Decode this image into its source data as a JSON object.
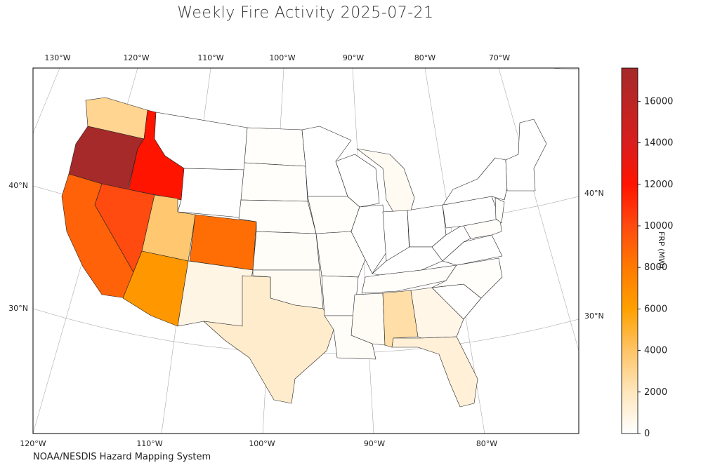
{
  "title": "Weekly Fire Activity 2025-07-21",
  "source": "NOAA/NESDIS Hazard Mapping System",
  "lon_ticks_top": [
    "130°W",
    "120°W",
    "110°W",
    "100°W",
    "90°W",
    "80°W",
    "70°W"
  ],
  "lon_ticks_bottom": [
    "120°W",
    "110°W",
    "100°W",
    "90°W",
    "80°W"
  ],
  "lat_ticks_left": [
    "40°N",
    "30°N"
  ],
  "lat_ticks_right": [
    "40°N",
    "30°N"
  ],
  "colorbar": {
    "label": "FRP (MW)",
    "ticks": [
      "0",
      "2000",
      "4000",
      "6000",
      "8000",
      "10000",
      "12000",
      "14000",
      "16000"
    ],
    "min": 0,
    "max": 17600,
    "stops": [
      {
        "v": 0,
        "color": "#ffffff"
      },
      {
        "v": 2000,
        "color": "#ffe6bc"
      },
      {
        "v": 4000,
        "color": "#ffc466"
      },
      {
        "v": 6000,
        "color": "#ffa000"
      },
      {
        "v": 8000,
        "color": "#ff7a00"
      },
      {
        "v": 10000,
        "color": "#ff4a10"
      },
      {
        "v": 12000,
        "color": "#ff1400"
      },
      {
        "v": 14000,
        "color": "#d81e1e"
      },
      {
        "v": 17600,
        "color": "#a52a2a"
      }
    ]
  },
  "states": [
    {
      "name": "Washington",
      "frp": 3000
    },
    {
      "name": "Oregon",
      "frp": 17500
    },
    {
      "name": "Idaho",
      "frp": 12000
    },
    {
      "name": "California",
      "frp": 9000
    },
    {
      "name": "Nevada",
      "frp": 10000
    },
    {
      "name": "Utah",
      "frp": 3800
    },
    {
      "name": "Arizona",
      "frp": 6500
    },
    {
      "name": "Colorado",
      "frp": 8500
    },
    {
      "name": "New Mexico",
      "frp": 800
    },
    {
      "name": "Texas",
      "frp": 1500
    },
    {
      "name": "Oklahoma",
      "frp": 400
    },
    {
      "name": "Kansas",
      "frp": 200
    },
    {
      "name": "Louisiana",
      "frp": 200
    },
    {
      "name": "Mississippi",
      "frp": 300
    },
    {
      "name": "Alabama",
      "frp": 2500
    },
    {
      "name": "Georgia",
      "frp": 700
    },
    {
      "name": "Florida",
      "frp": 1200
    },
    {
      "name": "Michigan",
      "frp": 400
    },
    {
      "name": "Montana",
      "frp": 0
    },
    {
      "name": "Wyoming",
      "frp": 0
    }
  ]
}
